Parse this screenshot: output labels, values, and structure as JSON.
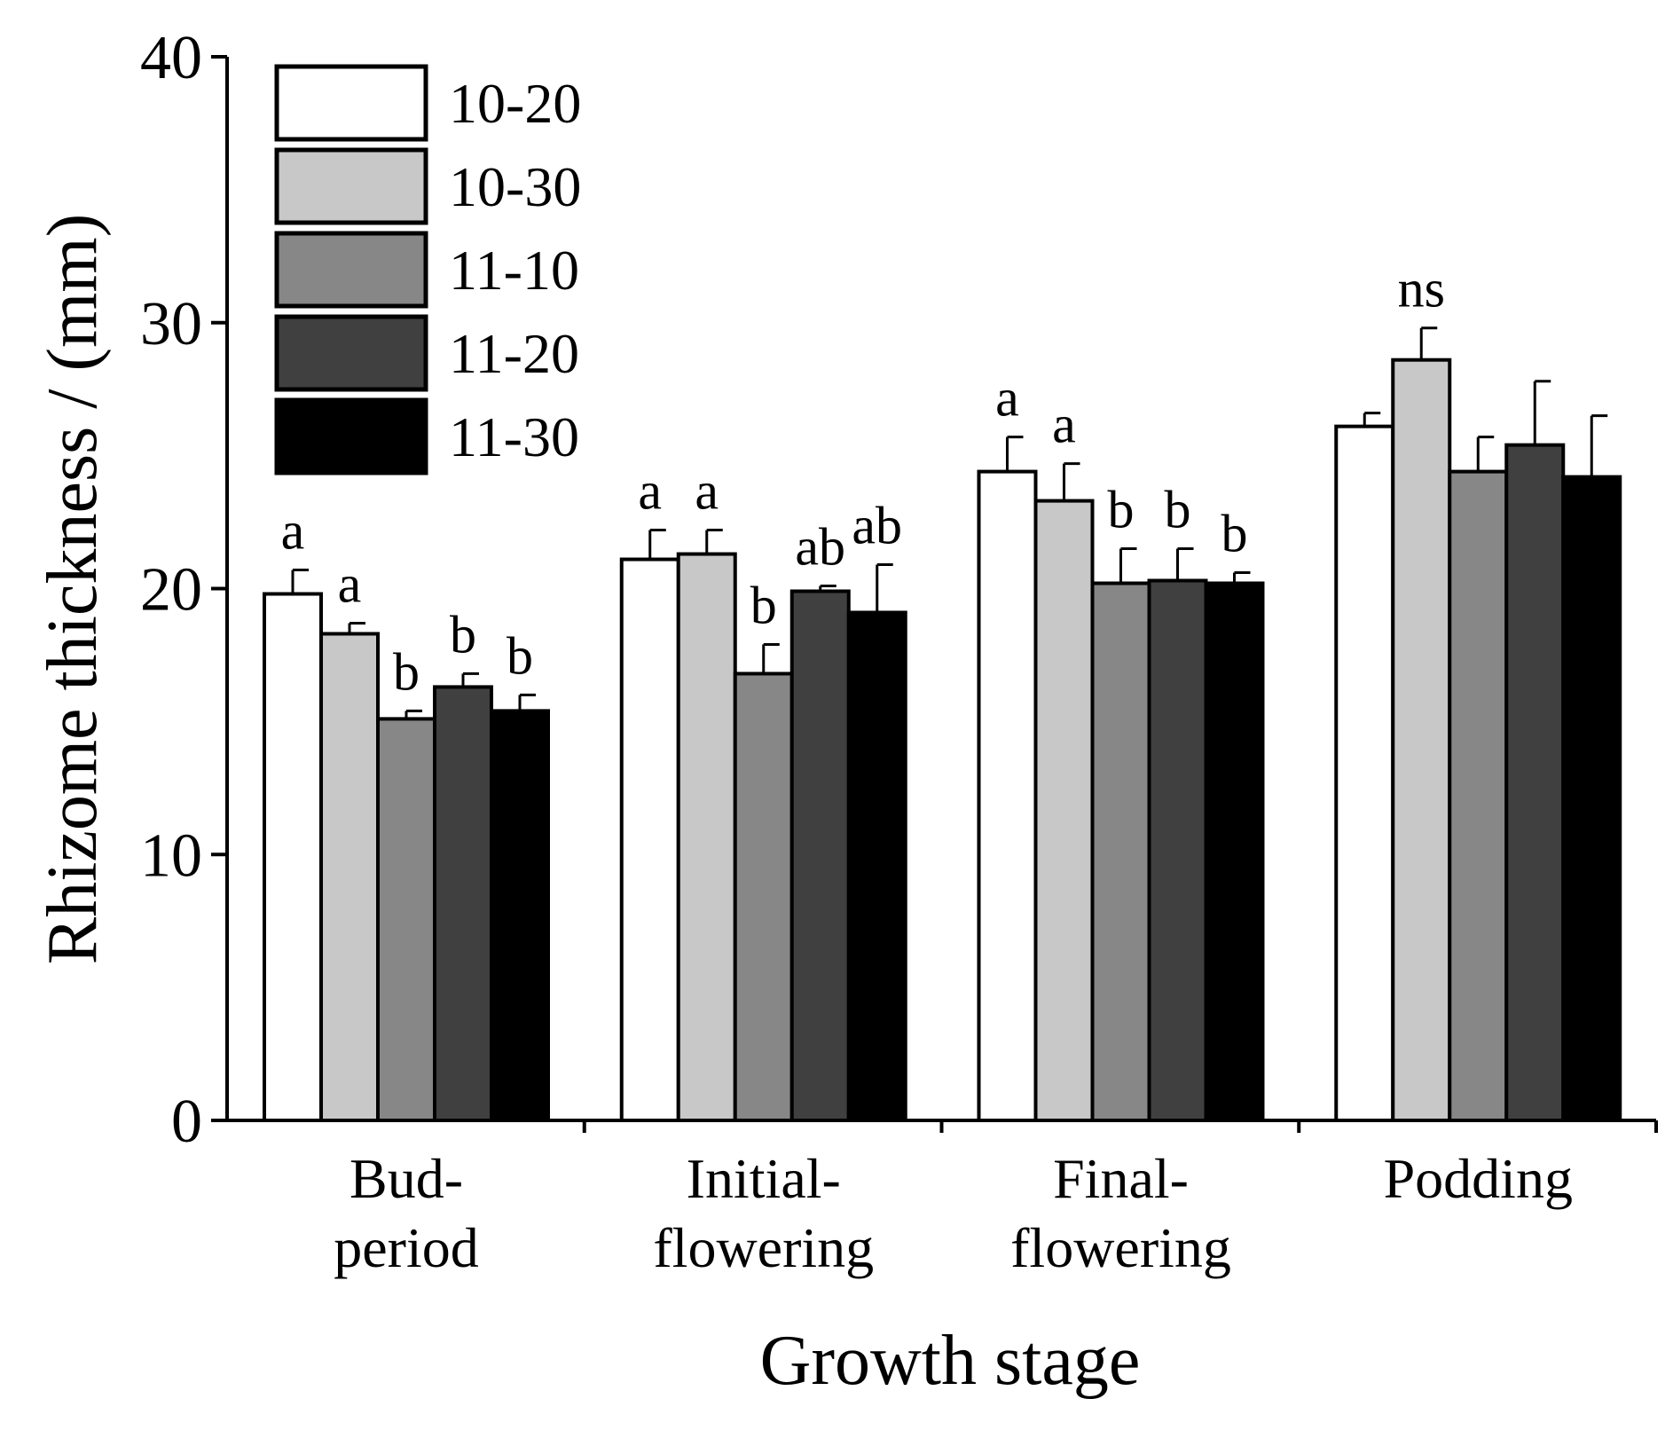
{
  "chart_data": {
    "type": "bar",
    "title": "",
    "xlabel": "Growth stage",
    "ylabel": "Rhizome thickness / (mm)",
    "ylim": [
      0,
      40
    ],
    "yticks": [
      "0",
      "10",
      "20",
      "30",
      "40"
    ],
    "grid": false,
    "legend_position": "top-left",
    "categories": [
      [
        "Bud-",
        "period"
      ],
      [
        "Initial-",
        "flowering"
      ],
      [
        "Final-",
        "flowering"
      ],
      [
        "Podding"
      ]
    ],
    "series": [
      {
        "name": "10-20",
        "color": "#ffffff",
        "values": [
          19.8,
          21.1,
          24.4,
          26.1
        ],
        "errors": [
          0.9,
          1.1,
          1.3,
          0.5
        ]
      },
      {
        "name": "10-30",
        "color": "#c8c8c8",
        "values": [
          18.3,
          21.3,
          23.3,
          28.6
        ],
        "errors": [
          0.4,
          0.9,
          1.4,
          1.2
        ]
      },
      {
        "name": "11-10",
        "color": "#878787",
        "values": [
          15.1,
          16.8,
          20.2,
          24.4
        ],
        "errors": [
          0.3,
          1.1,
          1.3,
          1.3
        ]
      },
      {
        "name": "11-20",
        "color": "#404040",
        "values": [
          16.3,
          19.9,
          20.3,
          25.4
        ],
        "errors": [
          0.5,
          0.2,
          1.2,
          2.4
        ]
      },
      {
        "name": "11-30",
        "color": "#000000",
        "values": [
          15.4,
          19.1,
          20.2,
          24.2
        ],
        "errors": [
          0.6,
          1.8,
          0.4,
          2.3
        ]
      }
    ],
    "annotations": [
      [
        "a",
        "a",
        "b",
        "b",
        "b"
      ],
      [
        "a",
        "a",
        "b",
        "ab",
        "ab"
      ],
      [
        "a",
        "a",
        "b",
        "b",
        "b"
      ],
      [
        "",
        "ns",
        "",
        "",
        ""
      ]
    ]
  }
}
